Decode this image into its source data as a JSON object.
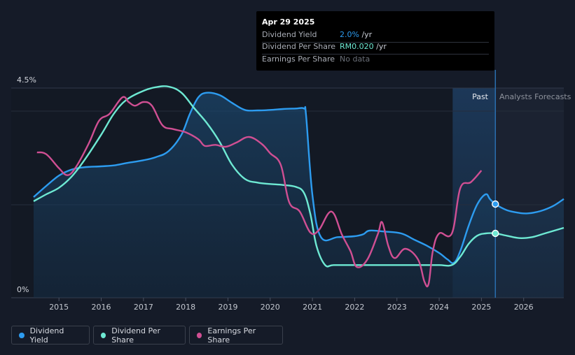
{
  "tooltip": {
    "date": "Apr 29 2025",
    "rows": [
      {
        "label": "Dividend Yield",
        "value": "2.0%",
        "unit": " /yr",
        "color": "#2d9cf0"
      },
      {
        "label": "Dividend Per Share",
        "value": "RM0.020",
        "unit": " /yr",
        "color": "#6ee9d3"
      },
      {
        "label": "Earnings Per Share",
        "value": "No data",
        "unit": "",
        "color": "#6b7079"
      }
    ]
  },
  "regions": {
    "past_label": "Past",
    "forecast_label": "Analysts Forecasts"
  },
  "legend": [
    {
      "label": "Dividend Yield",
      "color": "#2d9cf0"
    },
    {
      "label": "Dividend Per Share",
      "color": "#6ee9d3"
    },
    {
      "label": "Earnings Per Share",
      "color": "#d04f93"
    }
  ],
  "chart_data": {
    "type": "line",
    "x_ticks": [
      "2015",
      "2016",
      "2017",
      "2018",
      "2019",
      "2020",
      "2021",
      "2022",
      "2023",
      "2024",
      "2025",
      "2026"
    ],
    "y_tick_labels": [
      "4.5%",
      "0%"
    ],
    "y_scale_note": "dividend yield axis 0% to 4.5%; per-share series shown relative on same scale",
    "xlim": [
      2014.4,
      2026.95
    ],
    "ylim": [
      0,
      4.5
    ],
    "marker_date": 2025.33,
    "past_region_start": 2024.32,
    "series": [
      {
        "name": "Dividend Yield",
        "color": "#2d9cf0",
        "fill": true,
        "points": [
          [
            2014.4,
            2.16
          ],
          [
            2014.7,
            2.4
          ],
          [
            2015.0,
            2.62
          ],
          [
            2015.3,
            2.75
          ],
          [
            2015.6,
            2.8
          ],
          [
            2016.0,
            2.82
          ],
          [
            2016.3,
            2.84
          ],
          [
            2016.6,
            2.89
          ],
          [
            2017.0,
            2.95
          ],
          [
            2017.3,
            3.02
          ],
          [
            2017.6,
            3.15
          ],
          [
            2017.9,
            3.5
          ],
          [
            2018.1,
            3.95
          ],
          [
            2018.3,
            4.3
          ],
          [
            2018.5,
            4.4
          ],
          [
            2018.8,
            4.35
          ],
          [
            2019.1,
            4.18
          ],
          [
            2019.4,
            4.03
          ],
          [
            2019.7,
            4.02
          ],
          [
            2020.0,
            4.03
          ],
          [
            2020.3,
            4.05
          ],
          [
            2020.6,
            4.06
          ],
          [
            2020.8,
            4.06
          ],
          [
            2020.85,
            3.9
          ],
          [
            2021.0,
            2.2
          ],
          [
            2021.2,
            1.3
          ],
          [
            2021.6,
            1.3
          ],
          [
            2022.0,
            1.32
          ],
          [
            2022.2,
            1.36
          ],
          [
            2022.35,
            1.44
          ],
          [
            2022.7,
            1.42
          ],
          [
            2023.1,
            1.38
          ],
          [
            2023.4,
            1.25
          ],
          [
            2023.7,
            1.12
          ],
          [
            2024.0,
            0.96
          ],
          [
            2024.2,
            0.82
          ],
          [
            2024.35,
            0.75
          ],
          [
            2024.5,
            1.0
          ],
          [
            2024.7,
            1.55
          ],
          [
            2024.9,
            2.0
          ],
          [
            2025.1,
            2.22
          ],
          [
            2025.2,
            2.12
          ],
          [
            2025.33,
            2.01
          ],
          [
            2025.6,
            1.88
          ],
          [
            2025.9,
            1.82
          ],
          [
            2026.1,
            1.81
          ],
          [
            2026.4,
            1.86
          ],
          [
            2026.7,
            1.97
          ],
          [
            2026.95,
            2.12
          ]
        ]
      },
      {
        "name": "Dividend Per Share",
        "color": "#6ee9d3",
        "fill": false,
        "points": [
          [
            2014.4,
            2.07
          ],
          [
            2014.7,
            2.22
          ],
          [
            2015.0,
            2.36
          ],
          [
            2015.3,
            2.6
          ],
          [
            2015.6,
            2.95
          ],
          [
            2016.0,
            3.5
          ],
          [
            2016.3,
            3.95
          ],
          [
            2016.6,
            4.25
          ],
          [
            2017.0,
            4.44
          ],
          [
            2017.3,
            4.52
          ],
          [
            2017.6,
            4.53
          ],
          [
            2017.9,
            4.4
          ],
          [
            2018.2,
            4.07
          ],
          [
            2018.5,
            3.75
          ],
          [
            2018.8,
            3.35
          ],
          [
            2019.1,
            2.85
          ],
          [
            2019.4,
            2.55
          ],
          [
            2019.7,
            2.47
          ],
          [
            2020.0,
            2.44
          ],
          [
            2020.3,
            2.42
          ],
          [
            2020.6,
            2.38
          ],
          [
            2020.8,
            2.25
          ],
          [
            2020.95,
            1.8
          ],
          [
            2021.1,
            1.1
          ],
          [
            2021.3,
            0.7
          ],
          [
            2021.5,
            0.7
          ],
          [
            2022.0,
            0.7
          ],
          [
            2022.5,
            0.7
          ],
          [
            2023.0,
            0.7
          ],
          [
            2023.5,
            0.7
          ],
          [
            2024.0,
            0.7
          ],
          [
            2024.3,
            0.7
          ],
          [
            2024.5,
            0.88
          ],
          [
            2024.7,
            1.16
          ],
          [
            2024.9,
            1.33
          ],
          [
            2025.1,
            1.38
          ],
          [
            2025.33,
            1.38
          ],
          [
            2025.6,
            1.33
          ],
          [
            2025.9,
            1.28
          ],
          [
            2026.2,
            1.3
          ],
          [
            2026.5,
            1.38
          ],
          [
            2026.95,
            1.5
          ]
        ]
      },
      {
        "name": "Earnings Per Share",
        "color": "#d04f93",
        "fill": false,
        "points": [
          [
            2014.48,
            3.12
          ],
          [
            2014.7,
            3.08
          ],
          [
            2015.0,
            2.78
          ],
          [
            2015.2,
            2.63
          ],
          [
            2015.4,
            2.8
          ],
          [
            2015.7,
            3.3
          ],
          [
            2015.95,
            3.8
          ],
          [
            2016.2,
            3.95
          ],
          [
            2016.5,
            4.3
          ],
          [
            2016.65,
            4.2
          ],
          [
            2016.8,
            4.12
          ],
          [
            2017.0,
            4.2
          ],
          [
            2017.2,
            4.12
          ],
          [
            2017.45,
            3.7
          ],
          [
            2017.7,
            3.62
          ],
          [
            2018.0,
            3.55
          ],
          [
            2018.3,
            3.4
          ],
          [
            2018.45,
            3.26
          ],
          [
            2018.7,
            3.28
          ],
          [
            2018.95,
            3.24
          ],
          [
            2019.2,
            3.33
          ],
          [
            2019.5,
            3.45
          ],
          [
            2019.8,
            3.3
          ],
          [
            2020.0,
            3.1
          ],
          [
            2020.25,
            2.85
          ],
          [
            2020.45,
            2.05
          ],
          [
            2020.7,
            1.85
          ],
          [
            2020.95,
            1.4
          ],
          [
            2021.15,
            1.45
          ],
          [
            2021.45,
            1.85
          ],
          [
            2021.7,
            1.35
          ],
          [
            2021.9,
            1.0
          ],
          [
            2022.05,
            0.66
          ],
          [
            2022.3,
            0.82
          ],
          [
            2022.55,
            1.37
          ],
          [
            2022.65,
            1.62
          ],
          [
            2022.8,
            1.1
          ],
          [
            2022.95,
            0.85
          ],
          [
            2023.2,
            1.05
          ],
          [
            2023.5,
            0.82
          ],
          [
            2023.65,
            0.35
          ],
          [
            2023.75,
            0.3
          ],
          [
            2023.85,
            1.0
          ],
          [
            2024.0,
            1.38
          ],
          [
            2024.3,
            1.38
          ],
          [
            2024.5,
            2.35
          ],
          [
            2024.75,
            2.48
          ],
          [
            2025.0,
            2.73
          ]
        ]
      }
    ],
    "markers": [
      {
        "series": "Dividend Yield",
        "x": 2025.33,
        "y": 2.01
      },
      {
        "series": "Dividend Per Share",
        "x": 2025.33,
        "y": 1.38
      }
    ]
  }
}
